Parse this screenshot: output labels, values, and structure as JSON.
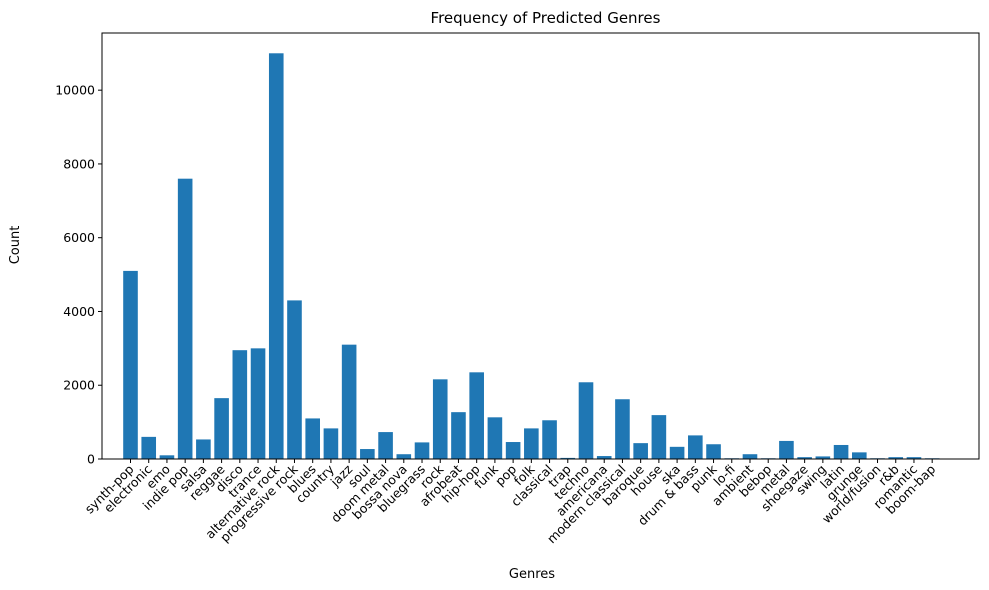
{
  "chart_data": {
    "type": "bar",
    "title": "Frequency of Predicted Genres",
    "xlabel": "Genres",
    "ylabel": "Count",
    "ylim": [
      0,
      11550
    ],
    "yticks": [
      0,
      2000,
      4000,
      6000,
      8000,
      10000
    ],
    "bar_color": "#1f77b4",
    "grid": false,
    "categories": [
      "synth-pop",
      "electronic",
      "emo",
      "indie pop",
      "salsa",
      "reggae",
      "disco",
      "trance",
      "alternative rock",
      "progressive rock",
      "blues",
      "country",
      "jazz",
      "soul",
      "doom metal",
      "bossa nova",
      "bluegrass",
      "rock",
      "afrobeat",
      "hip-hop",
      "funk",
      "pop",
      "folk",
      "classical",
      "trap",
      "techno",
      "americana",
      "modern classical",
      "baroque",
      "house",
      "ska",
      "drum & bass",
      "punk",
      "lo-fi",
      "ambient",
      "bebop",
      "metal",
      "shoegaze",
      "swing",
      "latin",
      "grunge",
      "world/fusion",
      "r&b",
      "romantic",
      "boom-bap"
    ],
    "values": [
      5100,
      600,
      100,
      7600,
      530,
      1650,
      2950,
      3000,
      11000,
      4300,
      1100,
      830,
      3100,
      270,
      730,
      130,
      450,
      2160,
      1270,
      2350,
      1130,
      460,
      830,
      1050,
      30,
      2080,
      80,
      1620,
      430,
      1190,
      330,
      640,
      400,
      20,
      130,
      20,
      490,
      50,
      70,
      380,
      180,
      20,
      50,
      50,
      20
    ]
  }
}
